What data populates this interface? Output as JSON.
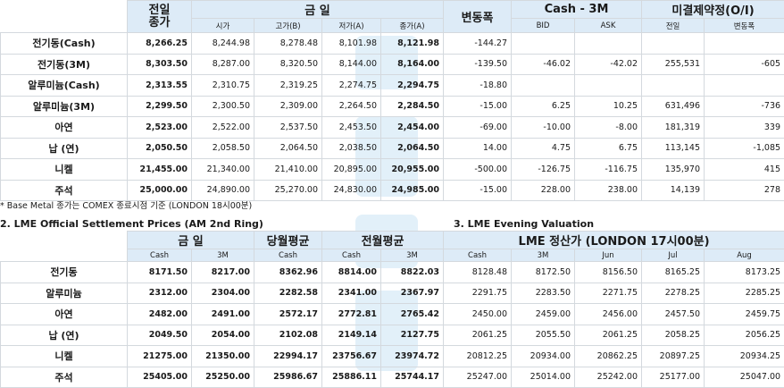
{
  "top": {
    "headers": {
      "prev_close_1": "전일",
      "prev_close_2": "종가",
      "today": "금 일",
      "change": "변동폭",
      "cash3m": "Cash - 3M",
      "oi": "미결제약정(O/I)",
      "open": "시가",
      "high": "고가(B)",
      "low": "저가(A)",
      "close": "종가(A)",
      "bid": "BID",
      "ask": "ASK",
      "prev": "전일",
      "chg": "변동폭"
    },
    "rows": [
      {
        "name": "전기동(Cash)",
        "prev": "8,266.25",
        "open": "8,244.98",
        "high": "8,278.48",
        "low": "8,101.98",
        "close": "8,121.98",
        "change": "-144.27",
        "bid": "",
        "ask": "",
        "oi_prev": "",
        "oi_chg": ""
      },
      {
        "name": "전기동(3M)",
        "prev": "8,303.50",
        "open": "8,287.00",
        "high": "8,320.50",
        "low": "8,144.00",
        "close": "8,164.00",
        "change": "-139.50",
        "bid": "-46.02",
        "ask": "-42.02",
        "oi_prev": "255,531",
        "oi_chg": "-605"
      },
      {
        "name": "알루미늄(Cash)",
        "prev": "2,313.55",
        "open": "2,310.75",
        "high": "2,319.25",
        "low": "2,274.75",
        "close": "2,294.75",
        "change": "-18.80",
        "bid": "",
        "ask": "",
        "oi_prev": "",
        "oi_chg": ""
      },
      {
        "name": "알루미늄(3M)",
        "prev": "2,299.50",
        "open": "2,300.50",
        "high": "2,309.00",
        "low": "2,264.50",
        "close": "2,284.50",
        "change": "-15.00",
        "bid": "6.25",
        "ask": "10.25",
        "oi_prev": "631,496",
        "oi_chg": "-736"
      },
      {
        "name": "아연",
        "prev": "2,523.00",
        "open": "2,522.00",
        "high": "2,537.50",
        "low": "2,453.50",
        "close": "2,454.00",
        "change": "-69.00",
        "bid": "-10.00",
        "ask": "-8.00",
        "oi_prev": "181,319",
        "oi_chg": "339"
      },
      {
        "name": "납 (연)",
        "prev": "2,050.50",
        "open": "2,058.50",
        "high": "2,064.50",
        "low": "2,038.50",
        "close": "2,064.50",
        "change": "14.00",
        "bid": "4.75",
        "ask": "6.75",
        "oi_prev": "113,145",
        "oi_chg": "-1,085"
      },
      {
        "name": "니켈",
        "prev": "21,455.00",
        "open": "21,340.00",
        "high": "21,410.00",
        "low": "20,895.00",
        "close": "20,955.00",
        "change": "-500.00",
        "bid": "-126.75",
        "ask": "-116.75",
        "oi_prev": "135,970",
        "oi_chg": "415"
      },
      {
        "name": "주석",
        "prev": "25,000.00",
        "open": "24,890.00",
        "high": "25,270.00",
        "low": "24,830.00",
        "close": "24,985.00",
        "change": "-15.00",
        "bid": "228.00",
        "ask": "238.00",
        "oi_prev": "14,139",
        "oi_chg": "278"
      }
    ]
  },
  "note": "* Base Metal 종가는 COMEX 종료시점 기준 (LONDON 18시00분)",
  "section2_title": "2. LME Official Settlement Prices (AM 2nd Ring)",
  "section3_title": "3. LME Evening Valuation",
  "bottom": {
    "headers": {
      "today": "금 일",
      "month_avg": "당월평균",
      "prev_month_avg": "전월평균",
      "valuation": "LME 정산가 (LONDON 17시00분)",
      "cash": "Cash",
      "m3": "3M",
      "jun": "Jun",
      "jul": "Jul",
      "aug": "Aug"
    },
    "rows": [
      {
        "name": "전기동",
        "cash": "8171.50",
        "m3": "8217.00",
        "month_avg": "8362.96",
        "pm_cash": "8814.00",
        "pm_3m": "8822.03",
        "ev_cash": "8128.48",
        "ev_3m": "8172.50",
        "jun": "8156.50",
        "jul": "8165.25",
        "aug": "8173.25"
      },
      {
        "name": "알루미늄",
        "cash": "2312.00",
        "m3": "2304.00",
        "month_avg": "2282.58",
        "pm_cash": "2341.00",
        "pm_3m": "2367.97",
        "ev_cash": "2291.75",
        "ev_3m": "2283.50",
        "jun": "2271.75",
        "jul": "2278.25",
        "aug": "2285.25"
      },
      {
        "name": "아연",
        "cash": "2482.00",
        "m3": "2491.00",
        "month_avg": "2572.17",
        "pm_cash": "2772.81",
        "pm_3m": "2765.42",
        "ev_cash": "2450.00",
        "ev_3m": "2459.00",
        "jun": "2456.00",
        "jul": "2457.50",
        "aug": "2459.75"
      },
      {
        "name": "납 (연)",
        "cash": "2049.50",
        "m3": "2054.00",
        "month_avg": "2102.08",
        "pm_cash": "2149.14",
        "pm_3m": "2127.75",
        "ev_cash": "2061.25",
        "ev_3m": "2055.50",
        "jun": "2061.25",
        "jul": "2058.25",
        "aug": "2056.25"
      },
      {
        "name": "니켈",
        "cash": "21275.00",
        "m3": "21350.00",
        "month_avg": "22994.17",
        "pm_cash": "23756.67",
        "pm_3m": "23974.72",
        "ev_cash": "20812.25",
        "ev_3m": "20934.00",
        "jun": "20862.25",
        "jul": "20897.25",
        "aug": "20934.25"
      },
      {
        "name": "주석",
        "cash": "25405.00",
        "m3": "25250.00",
        "month_avg": "25986.67",
        "pm_cash": "25886.11",
        "pm_3m": "25744.17",
        "ev_cash": "25247.00",
        "ev_3m": "25014.00",
        "jun": "25242.00",
        "jul": "25177.00",
        "aug": "25047.00"
      }
    ]
  }
}
